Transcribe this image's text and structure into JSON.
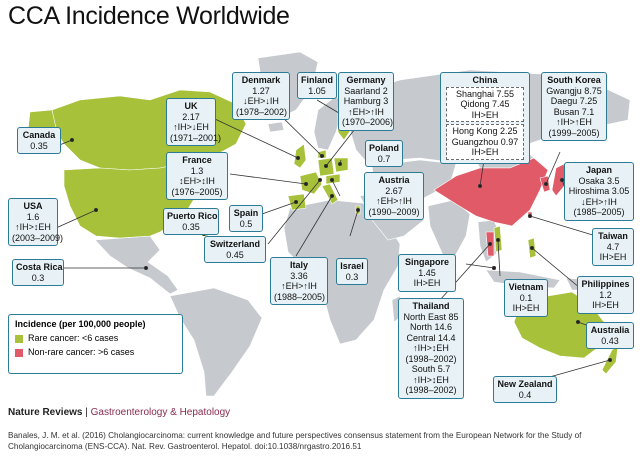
{
  "title": "CCA Incidence Worldwide",
  "colors": {
    "rare": "#a7c13b",
    "non_rare": "#e05a68",
    "land": "#c6cace",
    "border": "#2b7a96",
    "box_bg": "#e8f2f6"
  },
  "legend": {
    "title": "Incidence (per 100,000 people)",
    "rare": "Rare cancer: <6 cases",
    "non_rare": "Non-rare cancer: >6 cases"
  },
  "boxes": {
    "canada": {
      "name": "Canada",
      "lines": [
        "0.35"
      ]
    },
    "usa": {
      "name": "USA",
      "lines": [
        "1.6",
        "↑IH>↕EH",
        "(2003–2009)"
      ]
    },
    "costa_rica": {
      "name": "Costa Rica",
      "lines": [
        "0.3"
      ]
    },
    "puerto_rico": {
      "name": "Puerto Rico",
      "lines": [
        "0.35"
      ]
    },
    "uk": {
      "name": "UK",
      "lines": [
        "2.17",
        "↑IH>↓EH",
        "(1971–2001)"
      ]
    },
    "france": {
      "name": "France",
      "lines": [
        "1.3",
        "↕EH>↕IH",
        "(1976–2005)"
      ]
    },
    "spain": {
      "name": "Spain",
      "lines": [
        "0.5"
      ]
    },
    "switzerland": {
      "name": "Switzerland",
      "lines": [
        "0.45"
      ]
    },
    "denmark": {
      "name": "Denmark",
      "lines": [
        "1.27",
        "↓EH>↓IH",
        "(1978–2002)"
      ]
    },
    "finland": {
      "name": "Finland",
      "lines": [
        "1.05"
      ]
    },
    "germany": {
      "name": "Germany",
      "lines": [
        "Saarland 2",
        "Hamburg 3",
        "↑EH>↑IH",
        "(1970–2006)"
      ]
    },
    "poland": {
      "name": "Poland",
      "lines": [
        "0.7"
      ]
    },
    "austria": {
      "name": "Austria",
      "lines": [
        "2.67",
        "↑EH>↑IH",
        "(1990–2009)"
      ]
    },
    "italy": {
      "name": "Italy",
      "lines": [
        "3.36",
        "↑EH>↑IH",
        "(1988–2005)"
      ]
    },
    "israel": {
      "name": "Israel",
      "lines": [
        "0.3"
      ]
    },
    "china": {
      "name": "China",
      "group1": [
        "Shanghai 7.55",
        "Qidong 7.45",
        "IH>EH"
      ],
      "group2": [
        "Hong Kong 2.25",
        "Guangzhou 0.97",
        "IH>EH"
      ]
    },
    "south_korea": {
      "name": "South Korea",
      "lines": [
        "Gwangju 8.75",
        "Daegu 7.25",
        "Busan 7.1",
        "↑IH>↑EH",
        "(1999–2005)"
      ]
    },
    "japan": {
      "name": "Japan",
      "lines": [
        "Osaka 3.5",
        "Hiroshima 3.05",
        "↓EH>↑IH",
        "(1985–2005)"
      ]
    },
    "taiwan": {
      "name": "Taiwan",
      "lines": [
        "4.7",
        "IH>EH"
      ]
    },
    "philippines": {
      "name": "Philippines",
      "lines": [
        "1.2",
        "IH>EH"
      ]
    },
    "singapore": {
      "name": "Singapore",
      "lines": [
        "1.45",
        "IH>EH"
      ]
    },
    "vietnam": {
      "name": "Vietnam",
      "lines": [
        "0.1",
        "IH>EH"
      ]
    },
    "thailand": {
      "name": "Thailand",
      "lines": [
        "North East 85",
        "North 14.6",
        "Central 14.4",
        "↑IH>↕EH",
        "(1998–2002)",
        "South 5.7",
        "↑IH>↕EH",
        "(1998–2002)"
      ]
    },
    "australia": {
      "name": "Australia",
      "lines": [
        "0.43"
      ]
    },
    "new_zealand": {
      "name": "New Zealand",
      "lines": [
        "0.4"
      ]
    }
  },
  "footer": {
    "journal_a": "Nature Reviews",
    "journal_sep": " | ",
    "journal_b": "Gastroenterology & Hepatology",
    "citation": "Banales, J. M. et al. (2016) Cholangiocarcinoma: current knowledge and future perspectives consensus statement from the European Network for the Study of Cholangiocarcinoma (ENS-CCA). Nat. Rev. Gastroenterol. Hepatol. doi:10.1038/nrgastro.2016.51"
  }
}
